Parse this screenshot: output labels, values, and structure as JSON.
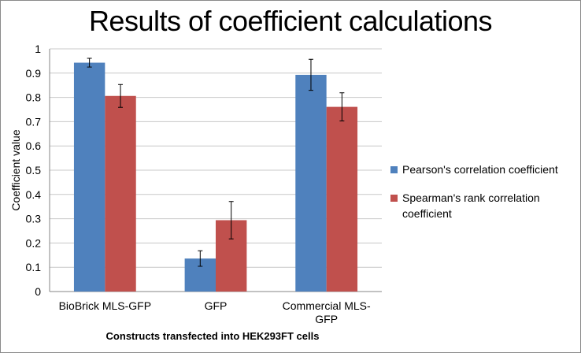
{
  "chart_data": {
    "type": "bar",
    "title": "Results of coefficient calculations",
    "xlabel": "Constructs transfected into HEK293FT cells",
    "ylabel": "Coefficient value",
    "ylim": [
      0,
      1
    ],
    "yticks": [
      "0",
      "0.1",
      "0.2",
      "0.3",
      "0.4",
      "0.5",
      "0.6",
      "0.7",
      "0.8",
      "0.9",
      "1"
    ],
    "categories": [
      [
        "BioBrick MLS-GFP"
      ],
      [
        "GFP"
      ],
      [
        "Commercial MLS-",
        "GFP"
      ]
    ],
    "series": [
      {
        "name": "Pearson's correlation coefficient",
        "color": "#4f81bd",
        "values": [
          0.943,
          0.136,
          0.893
        ],
        "errors": [
          0.018,
          0.032,
          0.064
        ]
      },
      {
        "name": "Spearman's rank correlation coefficient",
        "color": "#c0504d",
        "values": [
          0.806,
          0.294,
          0.761
        ],
        "errors": [
          0.047,
          0.077,
          0.058
        ]
      }
    ],
    "grid": true,
    "legend_position": "right"
  }
}
